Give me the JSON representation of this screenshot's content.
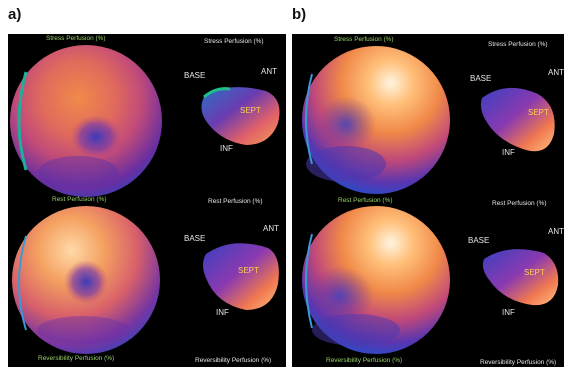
{
  "panels": [
    {
      "letter": "a)",
      "labels": {
        "stress_left": "Stress Perfusion (%)",
        "stress_right": "Stress Perfusion (%)",
        "rest_left": "Rest Perfusion (%)",
        "rest_right": "Rest Perfusion (%)",
        "rev_left": "Reversibility Perfusion (%)",
        "rev_right": "Reversibility Perfusion (%)"
      },
      "orientation_top": {
        "base": "BASE",
        "ant": "ANT",
        "sept": "SEPT",
        "inf": "INF"
      },
      "orientation_bottom": {
        "base": "BASE",
        "ant": "ANT",
        "sept": "SEPT",
        "inf": "INF"
      }
    },
    {
      "letter": "b)",
      "labels": {
        "stress_left": "Stress Perfusion (%)",
        "stress_right": "Stress Perfusion (%)",
        "rest_left": "Rest Perfusion (%)",
        "rest_right": "Rest Perfusion (%)",
        "rev_left": "Reversibility Perfusion (%)",
        "rev_right": "Reversibility Perfusion (%)"
      },
      "orientation_top": {
        "base": "BASE",
        "ant": "ANT",
        "sept": "SEPT",
        "inf": "INF"
      },
      "orientation_bottom": {
        "base": "BASE",
        "ant": "ANT",
        "sept": "SEPT",
        "inf": "INF"
      }
    }
  ]
}
